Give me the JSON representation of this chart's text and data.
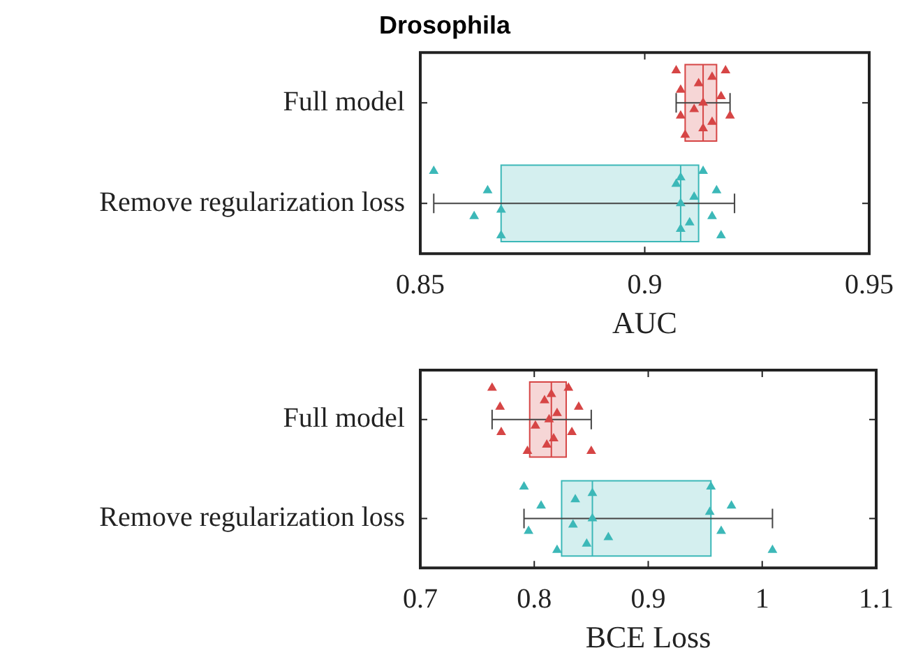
{
  "chart_data": [
    {
      "type": "box",
      "orientation": "horizontal",
      "title": "Drosophila",
      "xlabel": "AUC",
      "categories": [
        "Full model",
        "Remove regularization loss"
      ],
      "xlim": [
        0.85,
        0.95
      ],
      "xticks": [
        0.85,
        0.9,
        0.95
      ],
      "colors": [
        "#d64545",
        "#3cb8b8"
      ],
      "boxes": [
        {
          "low": 0.907,
          "q1": 0.909,
          "median": 0.913,
          "q3": 0.916,
          "high": 0.919
        },
        {
          "low": 0.853,
          "q1": 0.868,
          "median": 0.908,
          "q3": 0.912,
          "high": 0.92
        }
      ],
      "series": [
        {
          "type": "scatter",
          "color": "#d64545",
          "x": [
            "Full model",
            "Full model",
            "Full model",
            "Full model",
            "Full model",
            "Full model",
            "Full model",
            "Full model",
            "Full model",
            "Full model",
            "Full model",
            "Full model",
            "Full model"
          ],
          "values": [
            0.907,
            0.908,
            0.908,
            0.909,
            0.911,
            0.912,
            0.913,
            0.913,
            0.915,
            0.915,
            0.917,
            0.918,
            0.919
          ]
        },
        {
          "type": "scatter",
          "color": "#3cb8b8",
          "x": [
            "Remove regularization loss",
            "Remove regularization loss",
            "Remove regularization loss",
            "Remove regularization loss",
            "Remove regularization loss",
            "Remove regularization loss",
            "Remove regularization loss",
            "Remove regularization loss",
            "Remove regularization loss",
            "Remove regularization loss",
            "Remove regularization loss",
            "Remove regularization loss",
            "Remove regularization loss",
            "Remove regularization loss",
            "Remove regularization loss"
          ],
          "values": [
            0.853,
            0.862,
            0.865,
            0.868,
            0.868,
            0.907,
            0.908,
            0.908,
            0.908,
            0.91,
            0.911,
            0.913,
            0.915,
            0.916,
            0.917
          ]
        }
      ]
    },
    {
      "type": "box",
      "orientation": "horizontal",
      "xlabel": "BCE Loss",
      "categories": [
        "Full model",
        "Remove regularization loss"
      ],
      "xlim": [
        0.7,
        1.1
      ],
      "xticks": [
        0.7,
        0.8,
        0.9,
        1,
        1.1
      ],
      "colors": [
        "#d64545",
        "#3cb8b8"
      ],
      "boxes": [
        {
          "low": 0.763,
          "q1": 0.796,
          "median": 0.815,
          "q3": 0.828,
          "high": 0.85
        },
        {
          "low": 0.791,
          "q1": 0.824,
          "median": 0.851,
          "q3": 0.955,
          "high": 1.009
        }
      ],
      "series": [
        {
          "type": "scatter",
          "color": "#d64545",
          "x": [
            "Full model",
            "Full model",
            "Full model",
            "Full model",
            "Full model",
            "Full model",
            "Full model",
            "Full model",
            "Full model",
            "Full model",
            "Full model",
            "Full model",
            "Full model",
            "Full model",
            "Full model"
          ],
          "values": [
            0.763,
            0.771,
            0.77,
            0.794,
            0.801,
            0.809,
            0.811,
            0.813,
            0.815,
            0.817,
            0.82,
            0.83,
            0.833,
            0.839,
            0.85
          ]
        },
        {
          "type": "scatter",
          "color": "#3cb8b8",
          "x": [
            "Remove regularization loss",
            "Remove regularization loss",
            "Remove regularization loss",
            "Remove regularization loss",
            "Remove regularization loss",
            "Remove regularization loss",
            "Remove regularization loss",
            "Remove regularization loss",
            "Remove regularization loss",
            "Remove regularization loss",
            "Remove regularization loss",
            "Remove regularization loss",
            "Remove regularization loss",
            "Remove regularization loss",
            "Remove regularization loss"
          ],
          "values": [
            0.791,
            0.795,
            0.806,
            0.82,
            0.834,
            0.836,
            0.846,
            0.851,
            0.851,
            0.865,
            0.954,
            0.955,
            0.964,
            0.973,
            1.009
          ]
        }
      ]
    }
  ]
}
